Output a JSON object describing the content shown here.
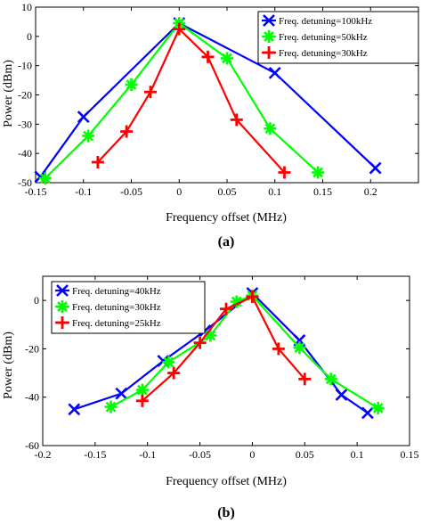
{
  "chart_data": [
    {
      "type": "line",
      "panel_label": "(a)",
      "xlabel": "Frequency offset (MHz)",
      "ylabel": "Power (dBm)",
      "xlim": [
        -0.15,
        0.25
      ],
      "ylim": [
        -50,
        10
      ],
      "xticks": [
        -0.15,
        -0.1,
        -0.05,
        0,
        0.05,
        0.1,
        0.15,
        0.2
      ],
      "xtick_labels": [
        "-0.15",
        "-0.1",
        "-0.05",
        "0",
        "0.05",
        "0.1",
        "0.15",
        "0.2"
      ],
      "yticks": [
        -50,
        -40,
        -30,
        -20,
        -10,
        0,
        10
      ],
      "ytick_labels": [
        "-50",
        "-40",
        "-30",
        "-20",
        "-10",
        "0",
        "10"
      ],
      "legend_position": "top-right",
      "series": [
        {
          "name": "Freq. detuning=100kHz",
          "color": "#0000ff",
          "marker": "x",
          "x": [
            -0.145,
            -0.1,
            0,
            0.1,
            0.205
          ],
          "y": [
            -48,
            -27.5,
            4.5,
            -12.5,
            -45
          ]
        },
        {
          "name": "Freq. detuning=50kHz",
          "color": "#00ff00",
          "marker": "star",
          "x": [
            -0.14,
            -0.095,
            -0.05,
            0,
            0.05,
            0.095,
            0.145
          ],
          "y": [
            -48.5,
            -34,
            -16.5,
            4.5,
            -7.5,
            -31.5,
            -46.5
          ]
        },
        {
          "name": "Freq. detuning=30kHz",
          "color": "#ff0000",
          "marker": "plus",
          "x": [
            -0.085,
            -0.055,
            -0.03,
            0,
            0.03,
            0.06,
            0.11
          ],
          "y": [
            -43,
            -32.5,
            -19,
            2.5,
            -7,
            -28.5,
            -46.5
          ]
        }
      ]
    },
    {
      "type": "line",
      "panel_label": "(b)",
      "xlabel": "Frequency offset (MHz)",
      "ylabel": "Power (dBm)",
      "xlim": [
        -0.2,
        0.15
      ],
      "ylim": [
        -60,
        10
      ],
      "xticks": [
        -0.2,
        -0.15,
        -0.1,
        -0.05,
        0,
        0.05,
        0.1,
        0.15
      ],
      "xtick_labels": [
        "-0.2",
        "-0.15",
        "-0.1",
        "-0.05",
        "0",
        "0.05",
        "0.1",
        "0.15"
      ],
      "yticks": [
        -60,
        -40,
        -20,
        0
      ],
      "ytick_labels": [
        "-60",
        "-40",
        "-20",
        "0"
      ],
      "legend_position": "top-left",
      "series": [
        {
          "name": "Freq. detuning=40kHz",
          "color": "#0000ff",
          "marker": "x",
          "x": [
            -0.17,
            -0.125,
            -0.085,
            -0.045,
            0,
            0.045,
            0.085,
            0.11
          ],
          "y": [
            -45,
            -38.5,
            -25,
            -12.5,
            3,
            -16.5,
            -39,
            -46.5
          ]
        },
        {
          "name": "Freq. detuning=30kHz",
          "color": "#00ff00",
          "marker": "star",
          "x": [
            -0.135,
            -0.105,
            -0.08,
            -0.04,
            -0.015,
            0,
            0.045,
            0.075,
            0.12
          ],
          "y": [
            -44,
            -37,
            -25.5,
            -14.5,
            -0.5,
            2,
            -19.5,
            -32.5,
            -44.5
          ]
        },
        {
          "name": "Freq. detuning=25kHz",
          "color": "#ff0000",
          "marker": "plus",
          "x": [
            -0.105,
            -0.075,
            -0.05,
            -0.025,
            0,
            0.025,
            0.05
          ],
          "y": [
            -41.5,
            -30,
            -17.5,
            -3.5,
            1.5,
            -20,
            -32.5
          ]
        }
      ]
    }
  ]
}
